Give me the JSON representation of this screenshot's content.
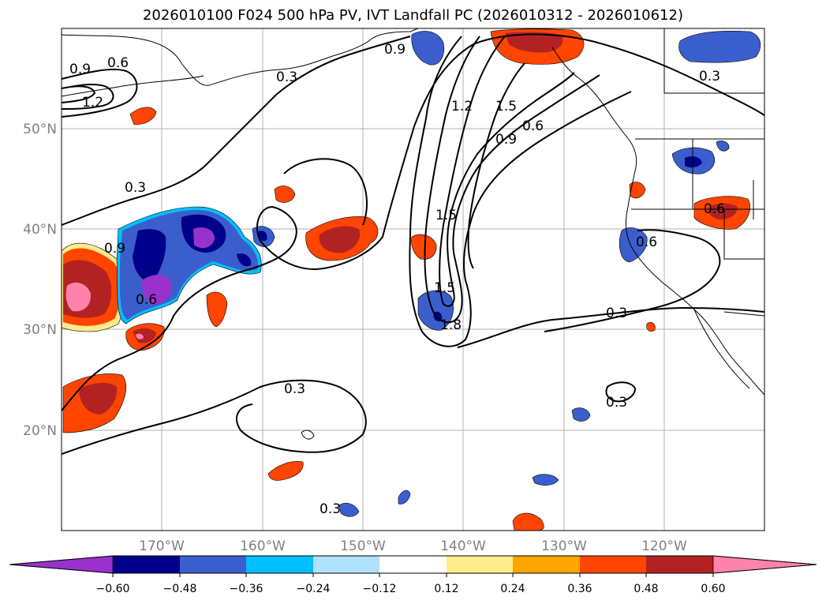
{
  "title": "2026010100 F024 500 hPa PV, IVT Landfall PC (2026010312 - 2026010612)",
  "map": {
    "lat_labels": [
      "50°N",
      "40°N",
      "30°N",
      "20°N"
    ],
    "lon_labels": [
      "170°W",
      "160°W",
      "150°W",
      "140°W",
      "130°W",
      "120°W"
    ],
    "lat_values": [
      50,
      40,
      30,
      20
    ],
    "lon_values": [
      -170,
      -160,
      -150,
      -140,
      -130,
      -120
    ]
  },
  "colorbar": {
    "colors": [
      "#9932cc",
      "#00008b",
      "#3a5fcd",
      "#00bfff",
      "#b0e2ff",
      "#ffffff",
      "#ffec8b",
      "#ffa500",
      "#ff4500",
      "#b22222",
      "#ff82ab"
    ],
    "tick_labels": [
      "−0.60",
      "−0.48",
      "−0.36",
      "−0.24",
      "−0.12",
      "0.12",
      "0.24",
      "0.36",
      "0.48",
      "0.60"
    ]
  },
  "pv_labels": [
    "0.9",
    "0.6",
    "1.2",
    "0.3",
    "0.3",
    "0.9",
    "1.2",
    "1.5",
    "0.9",
    "0.6",
    "0.3",
    "0.9",
    "0.6",
    "1.5",
    "1.5",
    "1.8",
    "0.3",
    "0.6",
    "0.6",
    "0.3",
    "0.3",
    "0.3"
  ]
}
